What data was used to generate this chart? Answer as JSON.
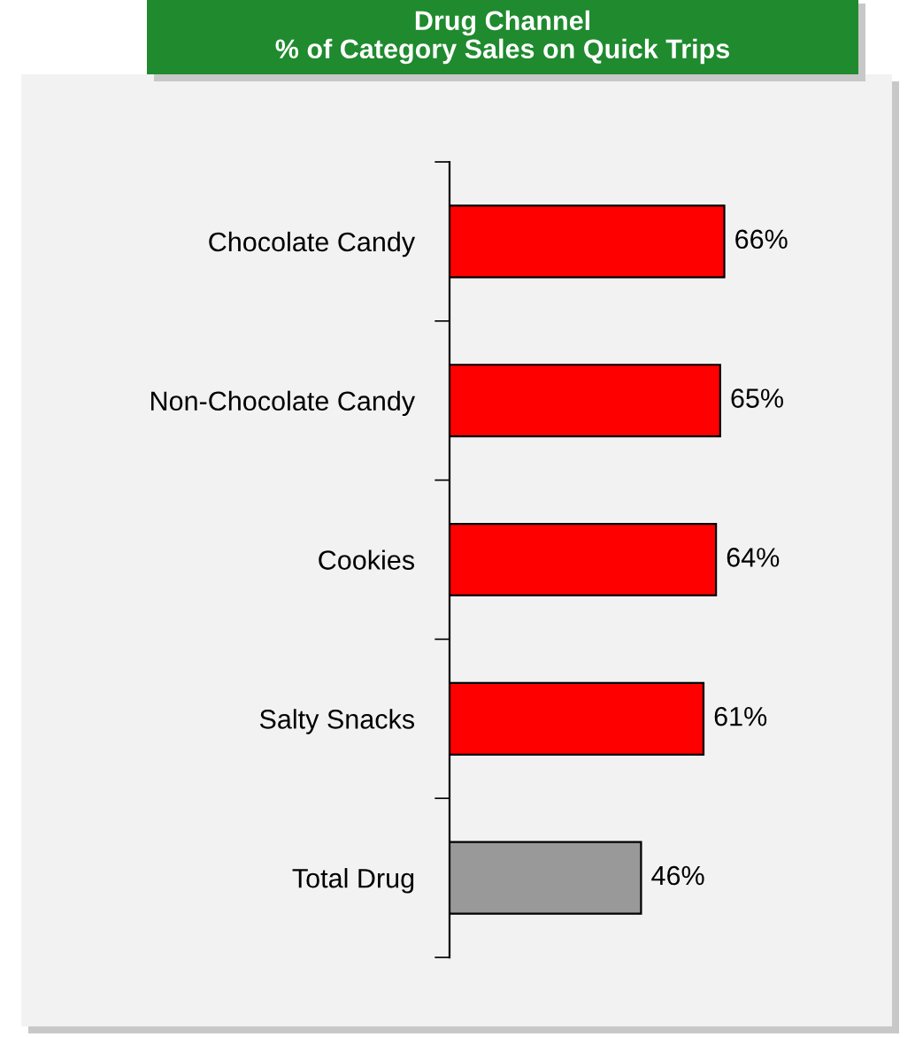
{
  "chart_data": {
    "type": "bar",
    "orientation": "horizontal",
    "title": "Drug Channel\n% of Category Sales on Quick Trips",
    "categories": [
      "Chocolate Candy",
      "Non-Chocolate Candy",
      "Cookies",
      "Salty Snacks",
      "Total Drug"
    ],
    "values": [
      66,
      65,
      64,
      61,
      46
    ],
    "colors": [
      "#ff0000",
      "#ff0000",
      "#ff0000",
      "#ff0000",
      "#999999"
    ],
    "value_labels": [
      "66%",
      "65%",
      "64%",
      "61%",
      "46%"
    ],
    "grid": false
  }
}
